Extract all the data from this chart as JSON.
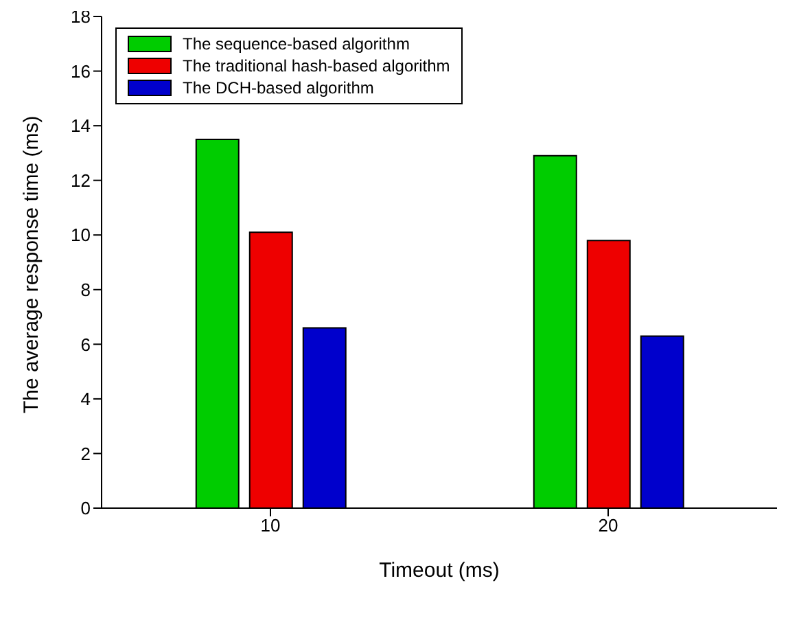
{
  "chart_data": {
    "type": "bar",
    "xlabel": "Timeout (ms)",
    "ylabel": "The average response time (ms)",
    "categories": [
      "10",
      "20"
    ],
    "series": [
      {
        "name": "The sequence-based algorithm",
        "color": "#00cc00",
        "values": [
          13.5,
          12.9
        ]
      },
      {
        "name": "The traditional hash-based algorithm",
        "color": "#ee0000",
        "values": [
          10.1,
          9.8
        ]
      },
      {
        "name": "The DCH-based algorithm",
        "color": "#0000cc",
        "values": [
          6.6,
          6.3
        ]
      }
    ],
    "ylim": [
      0,
      18
    ],
    "yticks": [
      0,
      2,
      4,
      6,
      8,
      10,
      12,
      14,
      16,
      18
    ],
    "grid": false,
    "legend": "top left"
  }
}
